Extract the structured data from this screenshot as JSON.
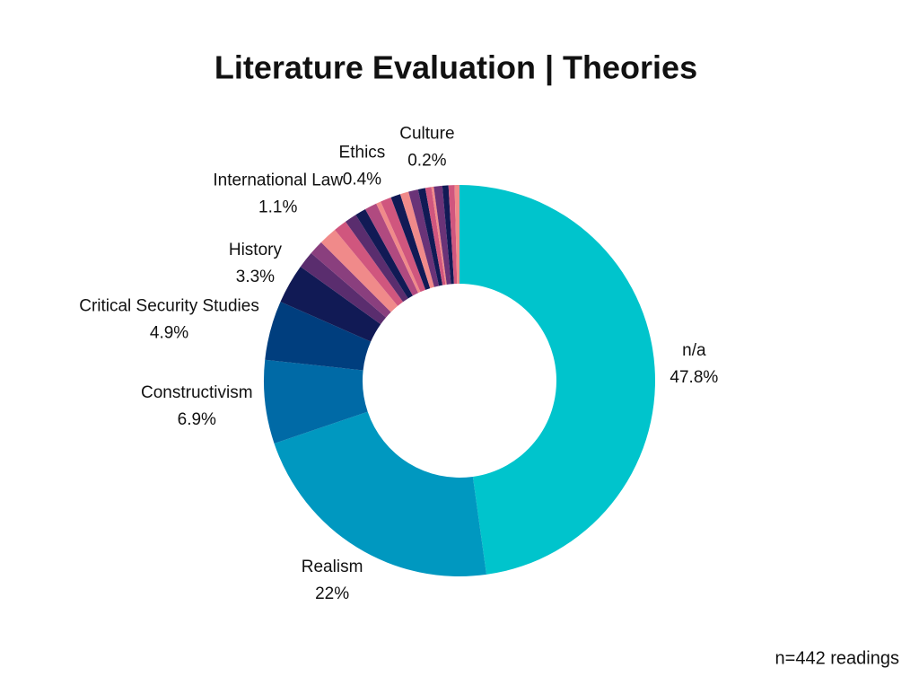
{
  "chart_data": {
    "type": "donut",
    "title": "Literature Evaluation | Theories",
    "footnote": "n=442 readings",
    "categories": [
      "n/a",
      "Realism",
      "Constructivism",
      "Critical Security Studies",
      "History",
      null,
      null,
      null,
      "International Law",
      null,
      null,
      null,
      "Ethics",
      null,
      null,
      null,
      null,
      null,
      null,
      "Culture",
      null,
      null,
      null,
      null
    ],
    "values": [
      47.8,
      22,
      6.9,
      4.9,
      3.3,
      1.4,
      1.2,
      1.5,
      1.1,
      1.0,
      0.9,
      1.0,
      0.4,
      0.9,
      0.8,
      0.7,
      0.8,
      0.6,
      0.5,
      0.2,
      0.7,
      0.5,
      0.5,
      0.4
    ],
    "value_labels": [
      "47.8%",
      "22%",
      "6.9%",
      "4.9%",
      "3.3%",
      null,
      null,
      null,
      "1.1%",
      null,
      null,
      null,
      "0.4%",
      null,
      null,
      null,
      null,
      null,
      null,
      "0.2%",
      null,
      null,
      null,
      null
    ],
    "colors": [
      "#00c4cc",
      "#0098c0",
      "#006aa6",
      "#003e7e",
      "#111a55",
      "#5a2d6e",
      "#8a3f7e",
      "#f08a8a",
      "#d0567e",
      "#5a2d6e",
      "#111a55",
      "#b04a80",
      "#f08a8a",
      "#d0567e",
      "#111a55",
      "#f08a8a",
      "#6a3378",
      "#111a55",
      "#d0567e",
      "#f08a8a",
      "#6a3378",
      "#111a55",
      "#d0567e",
      "#f08a8a"
    ]
  }
}
